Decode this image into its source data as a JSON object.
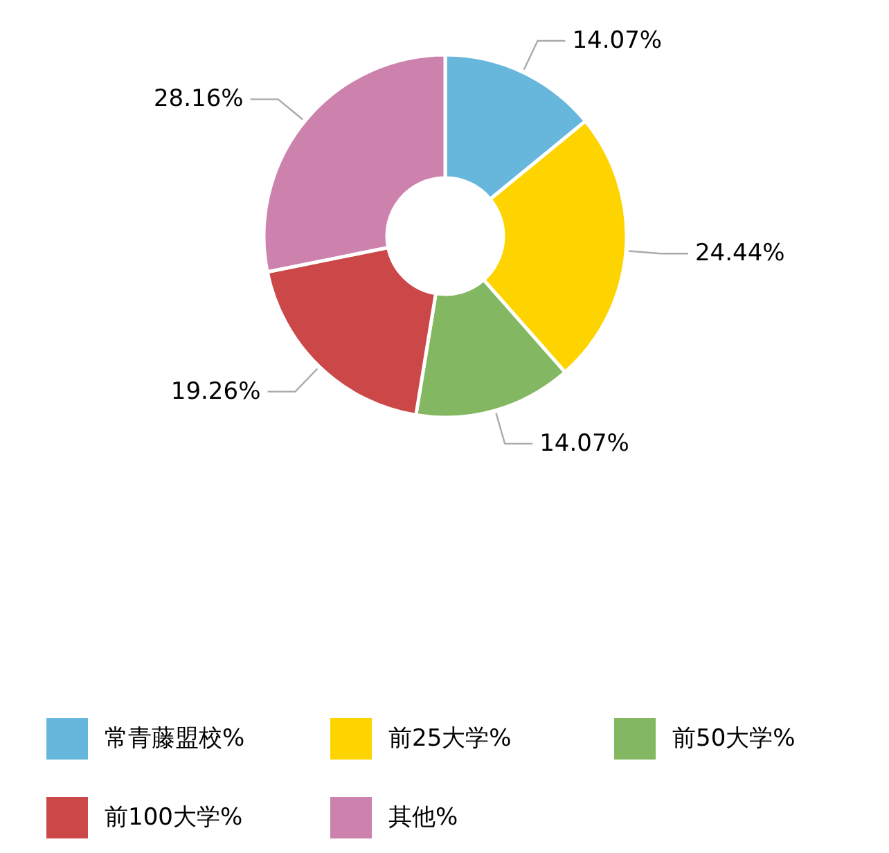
{
  "chart_data": {
    "type": "donut",
    "categories": [
      "常青藤盟校%",
      "前25大学%",
      "前50大学%",
      "前100大学%",
      "其他%"
    ],
    "values": [
      14.07,
      24.44,
      14.07,
      19.26,
      28.16
    ],
    "colors": [
      "#67b7dc",
      "#fdd400",
      "#84b761",
      "#cc4748",
      "#cd82ad"
    ],
    "value_labels": [
      "14.07%",
      "24.44%",
      "14.07%",
      "19.26%",
      "28.16%"
    ],
    "legend": "bottom"
  }
}
